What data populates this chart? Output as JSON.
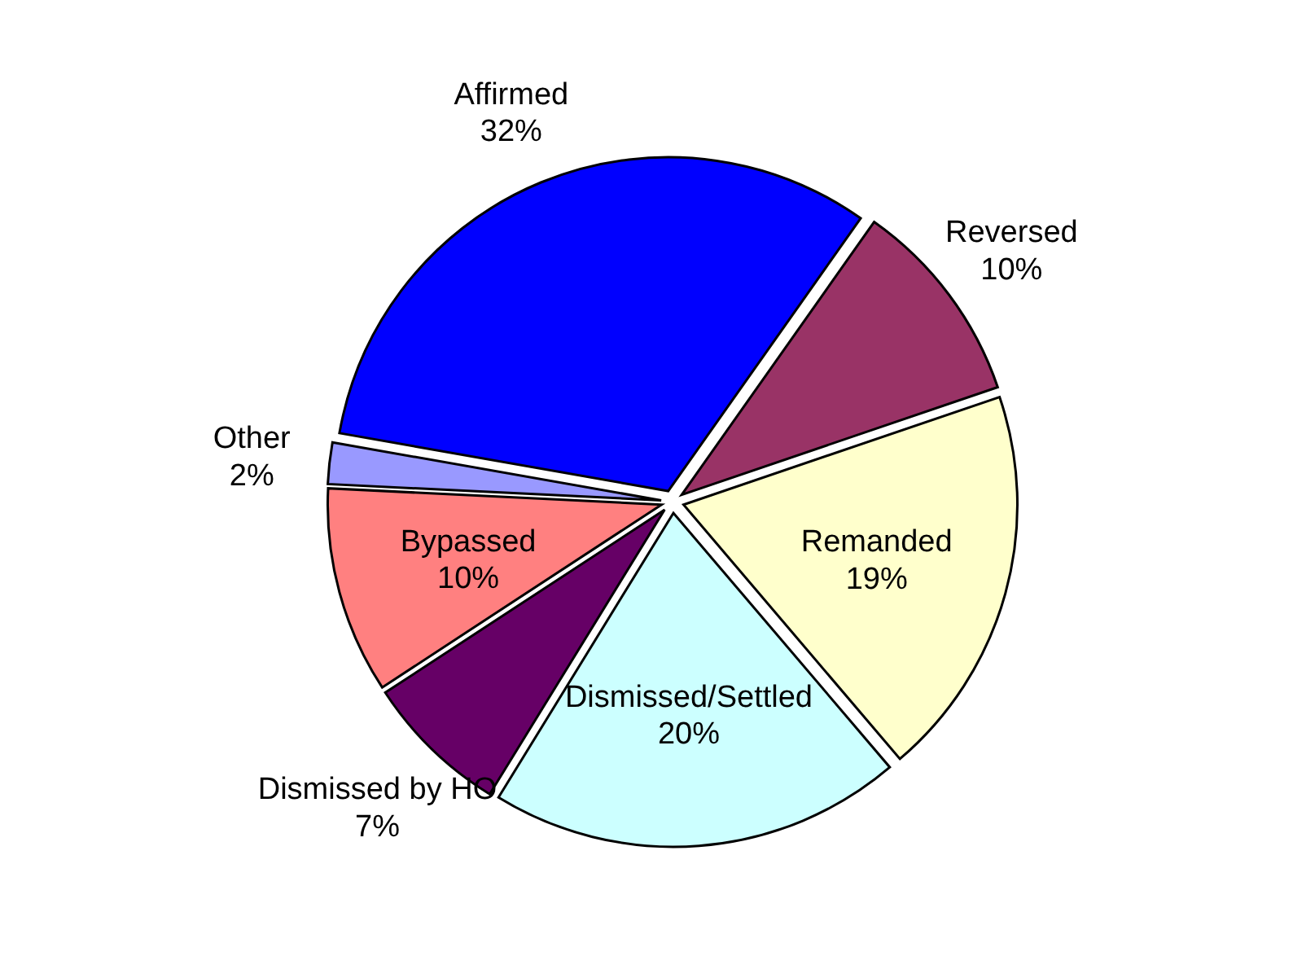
{
  "chart_data": {
    "type": "pie",
    "categories": [
      "Affirmed",
      "Reversed",
      "Remanded",
      "Dismissed/Settled",
      "Dismissed by HO",
      "Bypassed",
      "Other"
    ],
    "values": [
      32,
      10,
      19,
      20,
      7,
      10,
      2
    ],
    "colors": [
      "#0000ff",
      "#993366",
      "#ffffcc",
      "#ccffff",
      "#660066",
      "#ff8080",
      "#9999ff"
    ],
    "value_labels": [
      "32%",
      "10%",
      "19%",
      "20%",
      "7%",
      "10%",
      "2%"
    ],
    "legend": false
  }
}
